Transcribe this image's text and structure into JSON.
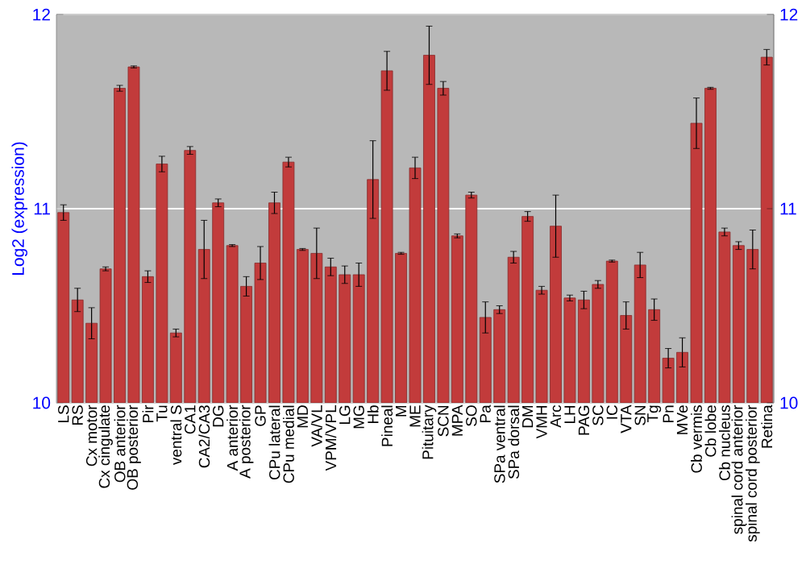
{
  "chart_data": {
    "type": "bar",
    "ylabel": "Log2 (expression)",
    "categories": [
      "LS",
      "RS",
      "Cx motor",
      "Cx cingulate",
      "OB anterior",
      "OB posterior",
      "Pir",
      "Tu",
      "ventral S",
      "CA1",
      "CA2/CA3",
      "DG",
      "A anterior",
      "A posterior",
      "GP",
      "CPu lateral",
      "CPu medial",
      "MD",
      "VA/VL",
      "VPM/VPL",
      "LG",
      "MG",
      "Hb",
      "Pineal",
      "M",
      "ME",
      "Pituitary",
      "SCN",
      "MPA",
      "SO",
      "Pa",
      "SPa ventral",
      "SPa dorsal",
      "DM",
      "VMH",
      "Arc",
      "LH",
      "PAG",
      "SC",
      "IC",
      "VTA",
      "SN",
      "Tg",
      "Pn",
      "MVe",
      "Cb vermis",
      "Cb lobe",
      "Cb nucleus",
      "spinal cord anterior",
      "spinal cord posterior",
      "Retina"
    ],
    "values": [
      10.98,
      10.53,
      10.41,
      10.69,
      11.62,
      11.73,
      10.65,
      11.23,
      10.36,
      11.3,
      10.79,
      11.03,
      10.81,
      10.6,
      10.72,
      11.03,
      11.24,
      10.79,
      10.77,
      10.7,
      10.66,
      10.66,
      11.15,
      11.71,
      10.77,
      11.21,
      11.79,
      11.62,
      10.86,
      11.07,
      10.44,
      10.48,
      10.75,
      10.96,
      10.58,
      10.91,
      10.54,
      10.53,
      10.61,
      10.73,
      10.45,
      10.71,
      10.48,
      10.23,
      10.26,
      11.44,
      11.62,
      10.88,
      10.81,
      10.79,
      11.78
    ],
    "errors": [
      0.04,
      0.06,
      0.08,
      0.01,
      0.015,
      0.005,
      0.03,
      0.04,
      0.02,
      0.02,
      0.15,
      0.02,
      0.005,
      0.05,
      0.085,
      0.055,
      0.025,
      0.005,
      0.13,
      0.045,
      0.045,
      0.06,
      0.2,
      0.1,
      0.005,
      0.055,
      0.15,
      0.035,
      0.01,
      0.015,
      0.08,
      0.02,
      0.03,
      0.025,
      0.02,
      0.16,
      0.015,
      0.045,
      0.02,
      0.005,
      0.07,
      0.065,
      0.055,
      0.05,
      0.075,
      0.13,
      0.005,
      0.02,
      0.02,
      0.1,
      0.04
    ],
    "color": "#c23b3b",
    "ylim": [
      10,
      12
    ],
    "yticks": [
      10,
      11,
      12
    ],
    "y2lim": [
      10,
      12
    ],
    "y2ticks": [
      10,
      11,
      12
    ],
    "grid": "y"
  }
}
